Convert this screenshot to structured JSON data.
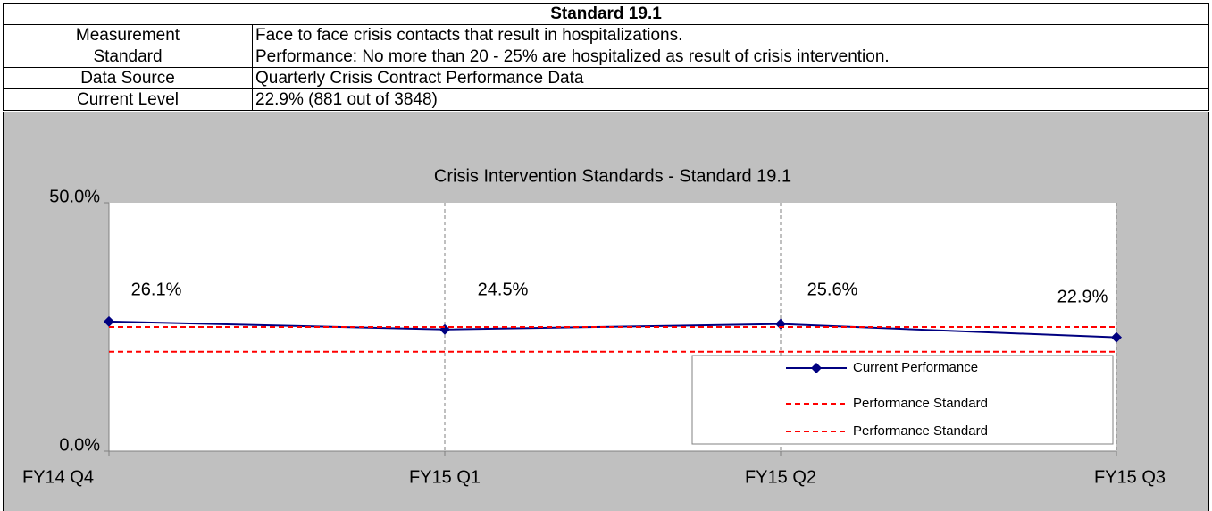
{
  "table": {
    "title": "Standard 19.1",
    "rows": [
      [
        "Measurement",
        "Face to face crisis contacts that result in hospitalizations."
      ],
      [
        "Standard",
        "Performance: No more than 20 - 25% are hospitalized as result of crisis intervention."
      ],
      [
        "Data Source",
        "Quarterly Crisis Contract Performance Data"
      ],
      [
        "Current Level",
        "22.9% (881 out of 3848)"
      ]
    ]
  },
  "chart_data": {
    "type": "line",
    "title": "Crisis Intervention Standards - Standard 19.1",
    "categories": [
      "FY14 Q4",
      "FY15 Q1",
      "FY15 Q2",
      "FY15 Q3"
    ],
    "series": [
      {
        "name": "Current Performance",
        "color": "#000080",
        "marker": "diamond",
        "values": [
          26.1,
          24.5,
          25.6,
          22.9
        ],
        "value_labels": [
          "26.1%",
          "24.5%",
          "25.6%",
          "22.9%"
        ]
      },
      {
        "name": "Performance Standard",
        "color": "#ff0000",
        "dashed": true,
        "values": [
          25,
          25,
          25,
          25
        ]
      },
      {
        "name": "Performance Standard",
        "color": "#ff0000",
        "dashed": true,
        "values": [
          20,
          20,
          20,
          20
        ]
      }
    ],
    "ylim": [
      0,
      50
    ],
    "yticks": [
      {
        "value": 0,
        "label": "0.0%"
      },
      {
        "value": 50,
        "label": "50.0%"
      }
    ],
    "grid": "vertical-dashed",
    "legend": "lower right"
  }
}
